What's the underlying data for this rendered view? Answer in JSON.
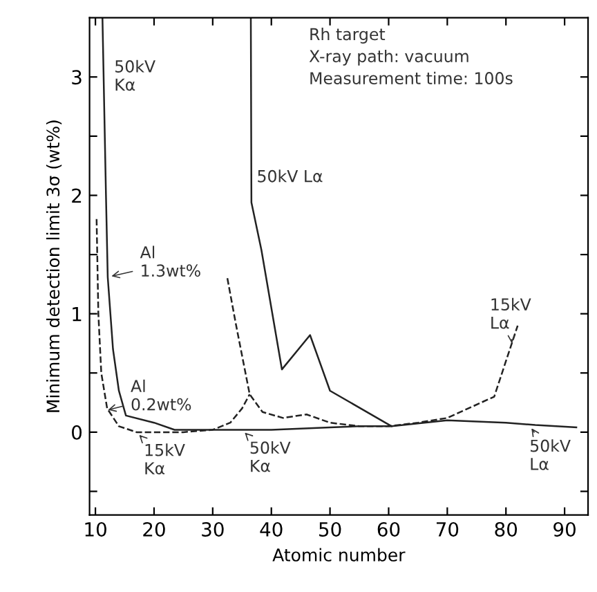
{
  "chart_data": {
    "type": "line",
    "xlabel": "Atomic number",
    "ylabel": "Minimum detection limit 3σ (wt%)",
    "xlim": [
      9,
      94
    ],
    "ylim": [
      -0.7,
      3.5
    ],
    "xticks": [
      10,
      20,
      30,
      40,
      50,
      60,
      70,
      80,
      90
    ],
    "yticks": [
      {
        "value": -0.5,
        "label": null
      },
      0,
      {
        "value": 0.5,
        "label": null
      },
      1,
      {
        "value": 1.5,
        "label": null
      },
      2,
      {
        "value": 2.5,
        "label": null
      },
      3
    ],
    "grid": false,
    "legend": false,
    "marker": "none",
    "series": [
      {
        "color": "#222222",
        "line_style": "solid",
        "x": [
          11.2,
          11.8,
          12.1,
          13,
          14,
          15.2,
          20,
          23.5,
          30,
          35,
          40,
          45,
          50,
          55,
          60.5
        ],
        "values": [
          3.5,
          2.0,
          1.31,
          0.7,
          0.35,
          0.14,
          0.08,
          0.02,
          0.02,
          0.02,
          0.02,
          0.03,
          0.04,
          0.05,
          0.05
        ]
      },
      {
        "color": "#222222",
        "line_style": "solid",
        "x": [
          36.5,
          36.6,
          38.3,
          41.8,
          46.6,
          50,
          60.5,
          70,
          80,
          85,
          92
        ],
        "values": [
          3.5,
          1.94,
          1.54,
          0.53,
          0.82,
          0.35,
          0.05,
          0.1,
          0.08,
          0.06,
          0.04
        ]
      },
      {
        "color": "#222222",
        "line_style": "dashed",
        "x": [
          10.2,
          10.5,
          11,
          12,
          14,
          17,
          20,
          25,
          30,
          33,
          35,
          36.3
        ],
        "values": [
          1.8,
          1.0,
          0.5,
          0.2,
          0.05,
          0.0,
          0.0,
          0.0,
          0.02,
          0.08,
          0.2,
          0.32
        ]
      },
      {
        "color": "#222222",
        "line_style": "dashed",
        "x": [
          32.5,
          34,
          36.3,
          38.5,
          42,
          46,
          50,
          55,
          60,
          65,
          70,
          78,
          82
        ],
        "values": [
          1.3,
          0.9,
          0.32,
          0.17,
          0.12,
          0.15,
          0.08,
          0.05,
          0.05,
          0.08,
          0.12,
          0.3,
          0.9
        ]
      }
    ],
    "annotations": [
      {
        "text": "50kV\nKα",
        "x": 12.2,
        "y": 3.0
      },
      {
        "text": "50kV Lα",
        "x": 37,
        "y": 2.15
      },
      {
        "text": "Al\n1.3wt%",
        "x": 12.1,
        "y": 1.31
      },
      {
        "text": "Al\n0.2wt%",
        "x": 11.5,
        "y": 0.18
      },
      {
        "text": "15kV\nKα",
        "x": 17,
        "y": 0.0
      },
      {
        "text": "50kV\nKα",
        "x": 35,
        "y": 0.02
      },
      {
        "text": "15kV\nLα",
        "x": 81,
        "y": 0.75
      },
      {
        "text": "50kV\nLα",
        "x": 84,
        "y": 0.06
      },
      "Rh target\nX-ray path: vacuum\nMeasurement time: 100s"
    ]
  }
}
